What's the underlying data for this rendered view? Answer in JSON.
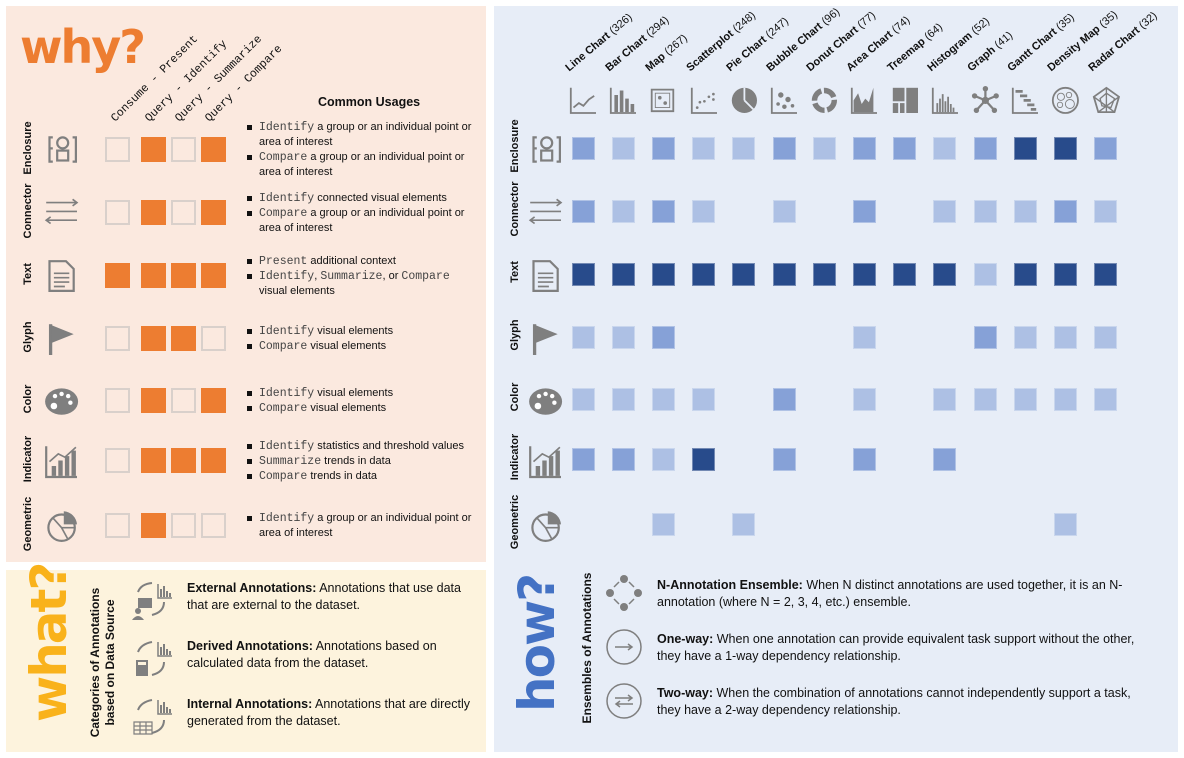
{
  "why": {
    "title": "why?",
    "tasks": [
      "Consume - Present",
      "Query - Identify",
      "Query - Summarize",
      "Query - Compare"
    ],
    "usages_heading": "Common Usages",
    "colors": {
      "on": "#ed7d31",
      "off": "#fbe9df"
    },
    "rows": [
      {
        "label": "Enclosure",
        "icon": "enclosure-icon",
        "tasks": [
          0,
          1,
          0,
          1
        ],
        "usages": [
          [
            [
              "m",
              "Identify"
            ],
            [
              "t",
              " a group or an individual point or area of interest"
            ]
          ],
          [
            [
              "m",
              "Compare"
            ],
            [
              "t",
              " a group or an individual point or area of interest"
            ]
          ]
        ]
      },
      {
        "label": "Connector",
        "icon": "connector-icon",
        "tasks": [
          0,
          1,
          0,
          1
        ],
        "usages": [
          [
            [
              "m",
              "Identify"
            ],
            [
              "t",
              " connected visual elements"
            ]
          ],
          [
            [
              "m",
              "Compare"
            ],
            [
              "t",
              " a group or an individual point or area of interest"
            ]
          ]
        ]
      },
      {
        "label": "Text",
        "icon": "text-document-icon",
        "tasks": [
          1,
          1,
          1,
          1
        ],
        "usages": [
          [
            [
              "m",
              "Present"
            ],
            [
              "t",
              " additional context"
            ]
          ],
          [
            [
              "m",
              "Identify"
            ],
            [
              "t",
              ", "
            ],
            [
              "m",
              "Summarize"
            ],
            [
              "t",
              ", or "
            ],
            [
              "m",
              "Compare"
            ],
            [
              "t",
              " visual elements"
            ]
          ]
        ]
      },
      {
        "label": "Glyph",
        "icon": "flag-icon",
        "tasks": [
          0,
          1,
          1,
          0
        ],
        "usages": [
          [
            [
              "m",
              "Identify"
            ],
            [
              "t",
              " visual elements"
            ]
          ],
          [
            [
              "m",
              "Compare"
            ],
            [
              "t",
              " visual elements"
            ]
          ]
        ]
      },
      {
        "label": "Color",
        "icon": "palette-icon",
        "tasks": [
          0,
          1,
          0,
          1
        ],
        "usages": [
          [
            [
              "m",
              "Identify"
            ],
            [
              "t",
              " visual elements"
            ]
          ],
          [
            [
              "m",
              "Compare"
            ],
            [
              "t",
              " visual elements"
            ]
          ]
        ]
      },
      {
        "label": "Indicator",
        "icon": "bar-trend-icon",
        "tasks": [
          0,
          1,
          1,
          1
        ],
        "usages": [
          [
            [
              "m",
              "Identify"
            ],
            [
              "t",
              " statistics and threshold values"
            ]
          ],
          [
            [
              "m",
              "Summarize"
            ],
            [
              "t",
              " trends in data"
            ]
          ],
          [
            [
              "m",
              "Compare"
            ],
            [
              "t",
              " trends in data"
            ]
          ]
        ]
      },
      {
        "label": "Geometric",
        "icon": "pie-geometry-icon",
        "tasks": [
          0,
          1,
          0,
          0
        ],
        "usages": [
          [
            [
              "m",
              "Identify"
            ],
            [
              "t",
              " a group or an individual point or area of interest"
            ]
          ]
        ]
      }
    ]
  },
  "chart_data": {
    "type": "heatmap",
    "columns": [
      {
        "name": "Line Chart",
        "count": "(326)",
        "icon": "line-chart-icon"
      },
      {
        "name": "Bar Chart",
        "count": "(294)",
        "icon": "bar-chart-icon"
      },
      {
        "name": "Map",
        "count": "(267)",
        "icon": "map-icon"
      },
      {
        "name": "Scatterplot",
        "count": "(248)",
        "icon": "scatterplot-icon"
      },
      {
        "name": "Pie Chart",
        "count": "(247)",
        "icon": "pie-chart-icon"
      },
      {
        "name": "Bubble Chart",
        "count": "(96)",
        "icon": "bubble-chart-icon"
      },
      {
        "name": "Donut Chart",
        "count": "(77)",
        "icon": "donut-chart-icon"
      },
      {
        "name": "Area Chart",
        "count": "(74)",
        "icon": "area-chart-icon"
      },
      {
        "name": "Treemap",
        "count": "(64)",
        "icon": "treemap-icon"
      },
      {
        "name": "Histogram",
        "count": "(52)",
        "icon": "histogram-icon"
      },
      {
        "name": "Graph",
        "count": "(41)",
        "icon": "graph-icon"
      },
      {
        "name": "Gantt Chart",
        "count": "(35)",
        "icon": "gantt-chart-icon"
      },
      {
        "name": "Density Map",
        "count": "(35)",
        "icon": "density-map-icon"
      },
      {
        "name": "Radar Chart",
        "count": "(32)",
        "icon": "radar-chart-icon"
      }
    ],
    "rows": [
      "Enclosure",
      "Connector",
      "Text",
      "Glyph",
      "Color",
      "Indicator",
      "Geometric"
    ],
    "levels": [
      [
        2,
        1,
        2,
        1,
        1,
        2,
        1,
        2,
        2,
        1,
        2,
        3,
        3,
        2
      ],
      [
        2,
        1,
        2,
        1,
        0,
        1,
        0,
        2,
        0,
        1,
        1,
        1,
        2,
        1
      ],
      [
        3,
        3,
        3,
        3,
        3,
        3,
        3,
        3,
        3,
        3,
        1,
        3,
        3,
        3
      ],
      [
        1,
        1,
        2,
        0,
        0,
        0,
        0,
        1,
        0,
        0,
        2,
        1,
        1,
        1
      ],
      [
        1,
        1,
        1,
        1,
        0,
        2,
        0,
        1,
        0,
        1,
        1,
        1,
        1,
        1
      ],
      [
        2,
        2,
        1,
        3,
        0,
        2,
        0,
        2,
        0,
        2,
        0,
        0,
        0,
        0
      ],
      [
        0,
        0,
        1,
        0,
        1,
        0,
        0,
        0,
        0,
        0,
        0,
        0,
        1,
        0
      ]
    ],
    "level_colors": [
      "transparent",
      "#adc0e4",
      "#86a1d7",
      "#284b8b"
    ]
  },
  "what": {
    "title": "what?",
    "side_label": [
      "Categories of Annotations",
      "based on Data Source"
    ],
    "items": [
      {
        "bold": "External Annotations:",
        "text": " Annotations that use data that are external to the dataset.",
        "icon": "external-data-icon"
      },
      {
        "bold": "Derived Annotations:",
        "text": " Annotations based on calculated data from the dataset.",
        "icon": "calculator-data-icon"
      },
      {
        "bold": "Internal Annotations:",
        "text": " Annotations that are directly generated from the dataset.",
        "icon": "table-data-icon"
      }
    ]
  },
  "how": {
    "title": "how?",
    "side_label": "Ensembles of Annotations",
    "items": [
      {
        "bold": "N-Annotation Ensemble:",
        "text": " When N distinct annotations are used together, it is an N-annotation (where N = 2, 3, 4, etc.) ensemble.",
        "icon": "n-ensemble-icon"
      },
      {
        "bold": "One-way:",
        "text": " When one annotation can provide equivalent task support without the other, they have a 1-way dependency relationship.",
        "icon": "one-way-arrow-icon"
      },
      {
        "bold": "Two-way:",
        "text": " When the combination of annotations cannot independently support a task, they have a 2-way dependency relationship.",
        "icon": "two-way-arrow-icon"
      }
    ]
  }
}
